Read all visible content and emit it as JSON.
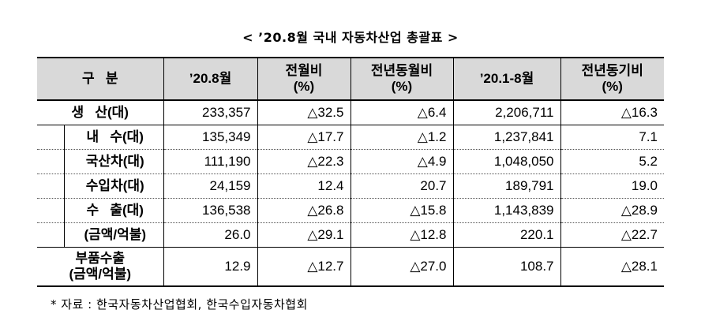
{
  "title": "< ’20.8월 국내 자동차산업 총괄표 >",
  "table": {
    "headers": [
      "구   분",
      "’20.8월",
      "전월비\n(%)",
      "전년동월비\n(%)",
      "’20.1-8월",
      "전년동기비\n(%)"
    ],
    "rows": [
      {
        "label": "생   산(대)",
        "values": [
          "233,357",
          "△32.5",
          "△6.4",
          "2,206,711",
          "△16.3"
        ]
      },
      {
        "label": "내   수(대)",
        "values": [
          "135,349",
          "△17.7",
          "△1.2",
          "1,237,841",
          "7.1"
        ]
      },
      {
        "label": "국산차(대)",
        "values": [
          "111,190",
          "△22.3",
          "△4.9",
          "1,048,050",
          "5.2"
        ]
      },
      {
        "label": "수입차(대)",
        "values": [
          "24,159",
          "12.4",
          "20.7",
          "189,791",
          "19.0"
        ]
      },
      {
        "label": "수   출(대)",
        "values": [
          "136,538",
          "△26.8",
          "△15.8",
          "1,143,839",
          "△28.9"
        ]
      },
      {
        "label": "(금액/억불)",
        "values": [
          "26.0",
          "△29.1",
          "△12.8",
          "220.1",
          "△22.7"
        ]
      },
      {
        "label": "부품수출\n(금액/억불)",
        "values": [
          "12.9",
          "△12.7",
          "△27.0",
          "108.7",
          "△28.1"
        ]
      }
    ]
  },
  "note": "* 자료 : 한국자동차산업협회, 한국수입자동차협회"
}
